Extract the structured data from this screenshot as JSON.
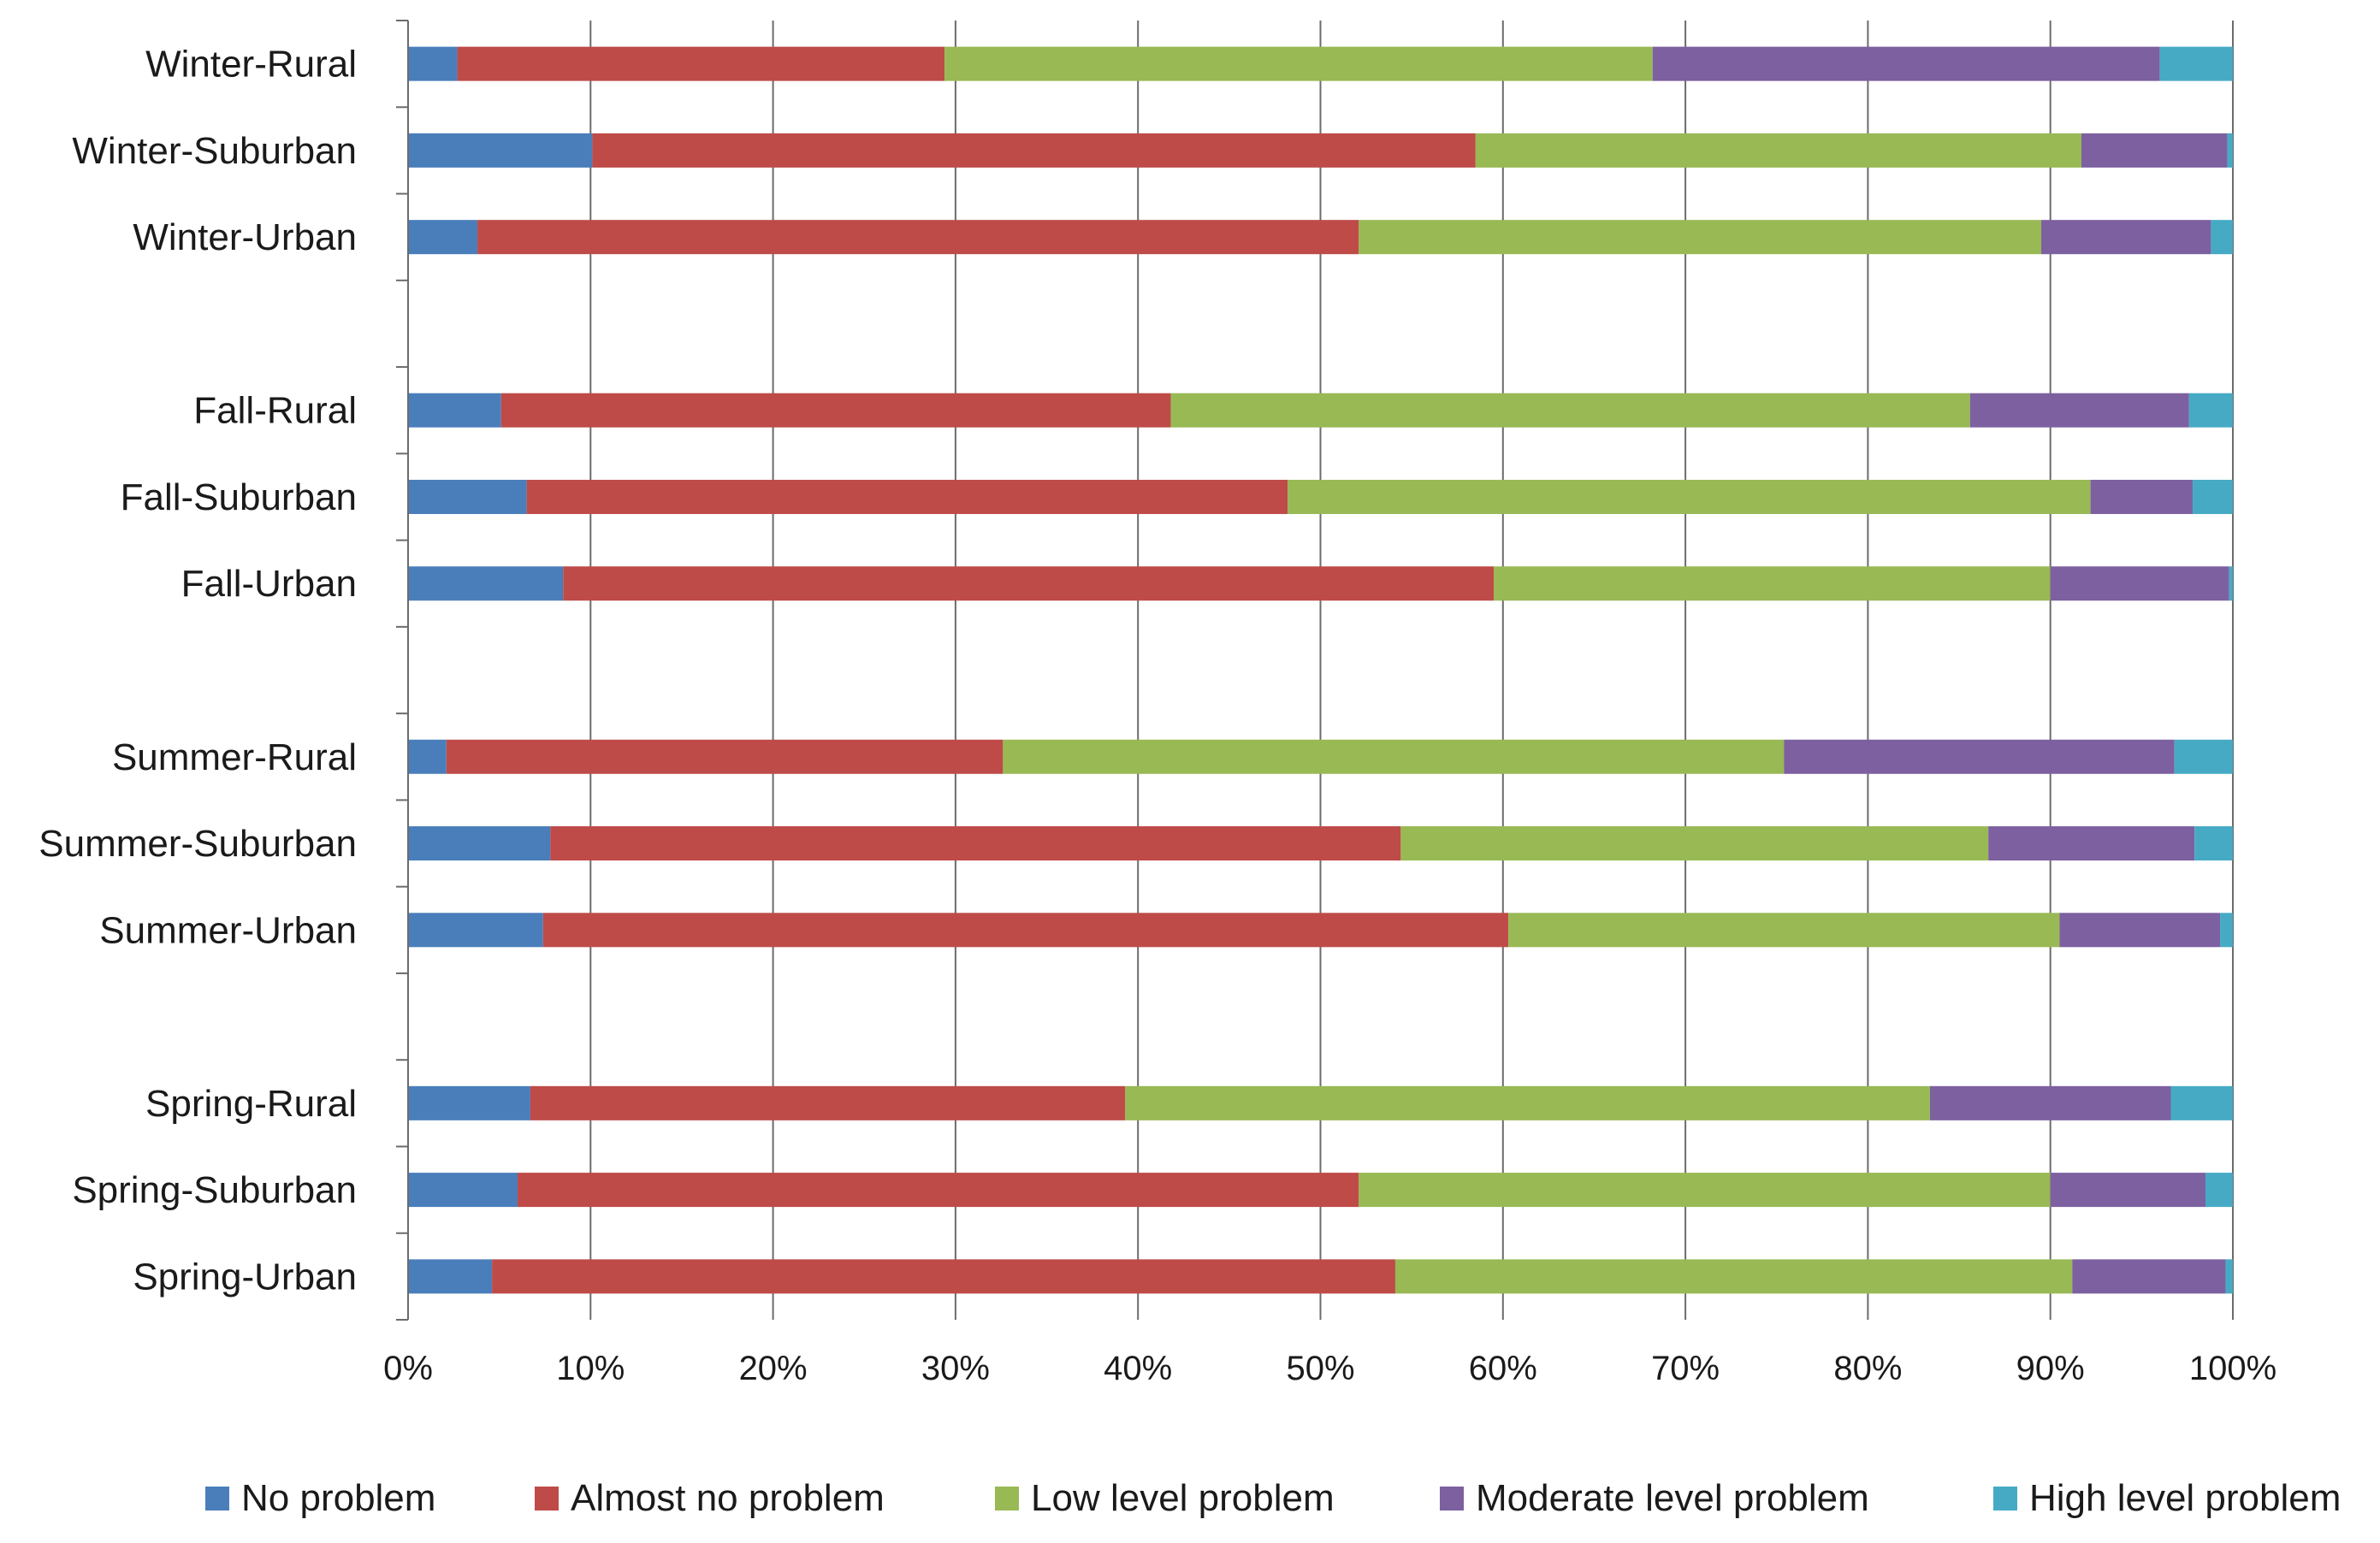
{
  "chart_data": {
    "type": "bar",
    "orientation": "horizontal",
    "stacked": "percent",
    "title": "",
    "xlabel": "",
    "ylabel": "",
    "xlim": [
      0,
      100
    ],
    "x_ticks": [
      "0%",
      "10%",
      "20%",
      "30%",
      "40%",
      "50%",
      "60%",
      "70%",
      "80%",
      "90%",
      "100%"
    ],
    "grid": true,
    "legend_position": "bottom",
    "categories": [
      "Winter-Rural",
      "Winter-Suburban",
      "Winter-Urban",
      "",
      "Fall-Rural",
      "Fall-Suburban",
      "Fall-Urban",
      "",
      "Summer-Rural",
      "Summer-Suburban",
      "Summer-Urban",
      "",
      "Spring-Rural",
      "Spring-Suburban",
      "Spring-Urban"
    ],
    "series": [
      {
        "name": "No problem",
        "color": "#4a7ebb",
        "values": [
          2.7,
          10.1,
          3.8,
          0,
          5.1,
          6.5,
          8.5,
          0,
          2.1,
          7.8,
          7.4,
          0,
          6.7,
          6.0,
          4.6
        ]
      },
      {
        "name": "Almost no problem",
        "color": "#be4b48",
        "values": [
          26.7,
          48.4,
          48.3,
          0,
          36.7,
          41.7,
          51.0,
          0,
          30.5,
          46.6,
          52.9,
          0,
          32.6,
          46.1,
          49.5
        ]
      },
      {
        "name": "Low level problem",
        "color": "#98b954",
        "values": [
          38.8,
          33.2,
          37.4,
          0,
          43.8,
          44.0,
          30.5,
          0,
          42.8,
          32.2,
          30.2,
          0,
          44.1,
          37.9,
          37.1
        ]
      },
      {
        "name": "Moderate level problem",
        "color": "#7d60a0",
        "values": [
          27.8,
          8.0,
          9.3,
          0,
          12.0,
          5.6,
          9.8,
          0,
          21.4,
          11.3,
          8.8,
          0,
          13.2,
          8.5,
          8.4
        ]
      },
      {
        "name": "High level problem",
        "color": "#46aac5",
        "values": [
          4.0,
          0.3,
          1.2,
          0,
          2.4,
          2.2,
          0.2,
          0,
          3.2,
          2.1,
          0.7,
          0,
          3.4,
          1.5,
          0.4
        ]
      }
    ]
  }
}
